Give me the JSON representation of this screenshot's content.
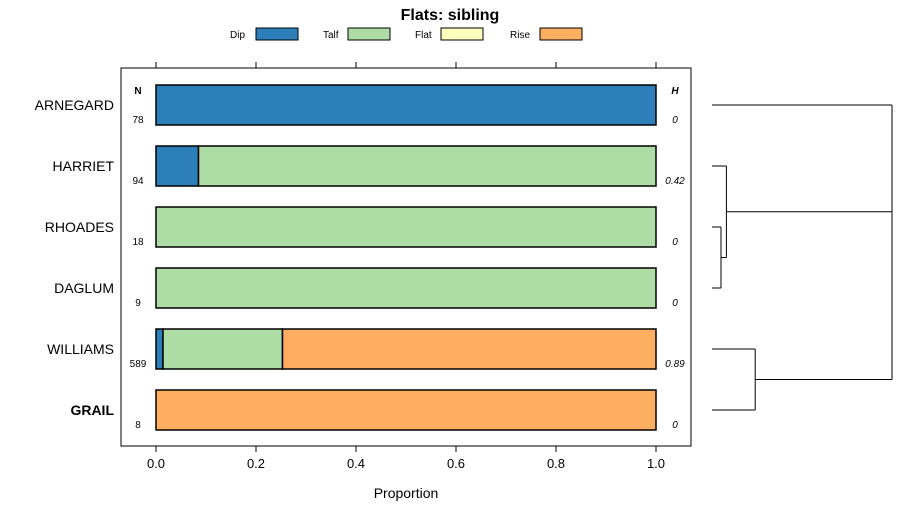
{
  "chart_data": {
    "type": "bar",
    "orientation": "horizontal",
    "stacked": true,
    "title": "Flats: sibling",
    "xlabel": "Proportion",
    "ylabel": "",
    "xlim": [
      -0.07,
      1.07
    ],
    "x_ticks": [
      "0.0",
      "0.2",
      "0.4",
      "0.6",
      "0.8",
      "1.0"
    ],
    "x_tick_values": [
      0,
      0.2,
      0.4,
      0.6,
      0.8,
      1.0
    ],
    "legend_position": "top",
    "n_header": "N",
    "h_header": "H",
    "categories": [
      "ARNEGARD",
      "HARRIET",
      "RHOADES",
      "DAGLUM",
      "WILLIAMS",
      "GRAIL"
    ],
    "bold_categories": [
      "GRAIL"
    ],
    "n_values": [
      "78",
      "94",
      "18",
      "9",
      "589",
      "8"
    ],
    "h_values": [
      "0",
      "0.42",
      "0",
      "0",
      "0.89",
      "0"
    ],
    "series": [
      {
        "name": "Dip",
        "color": "#2c7fb8",
        "values": [
          1.0,
          0.085,
          0,
          0,
          0.014,
          0
        ]
      },
      {
        "name": "Talf",
        "color": "#addda5",
        "values": [
          0,
          0.915,
          1.0,
          1.0,
          0.239,
          0
        ]
      },
      {
        "name": "Flat",
        "color": "#ffffbf",
        "values": [
          0,
          0,
          0,
          0,
          0,
          0
        ]
      },
      {
        "name": "Rise",
        "color": "#fdae61",
        "values": [
          0,
          0,
          0,
          0,
          0.747,
          1.0
        ]
      }
    ],
    "dendrogram": {
      "description": "hierarchical clustering of rows",
      "merges": [
        {
          "left": "RHOADES",
          "right": "DAGLUM",
          "height": 0.05
        },
        {
          "left": "HARRIET",
          "right": "RHOADES+DAGLUM",
          "height": 0.08
        },
        {
          "left": "WILLIAMS",
          "right": "GRAIL",
          "height": 0.24
        },
        {
          "left": "ARNEGARD",
          "right": "HARRIET+RHOADES+DAGLUM",
          "height": 0.98
        },
        {
          "left": "cluster-A",
          "right": "WILLIAMS+GRAIL",
          "height": 1.0
        }
      ]
    }
  }
}
